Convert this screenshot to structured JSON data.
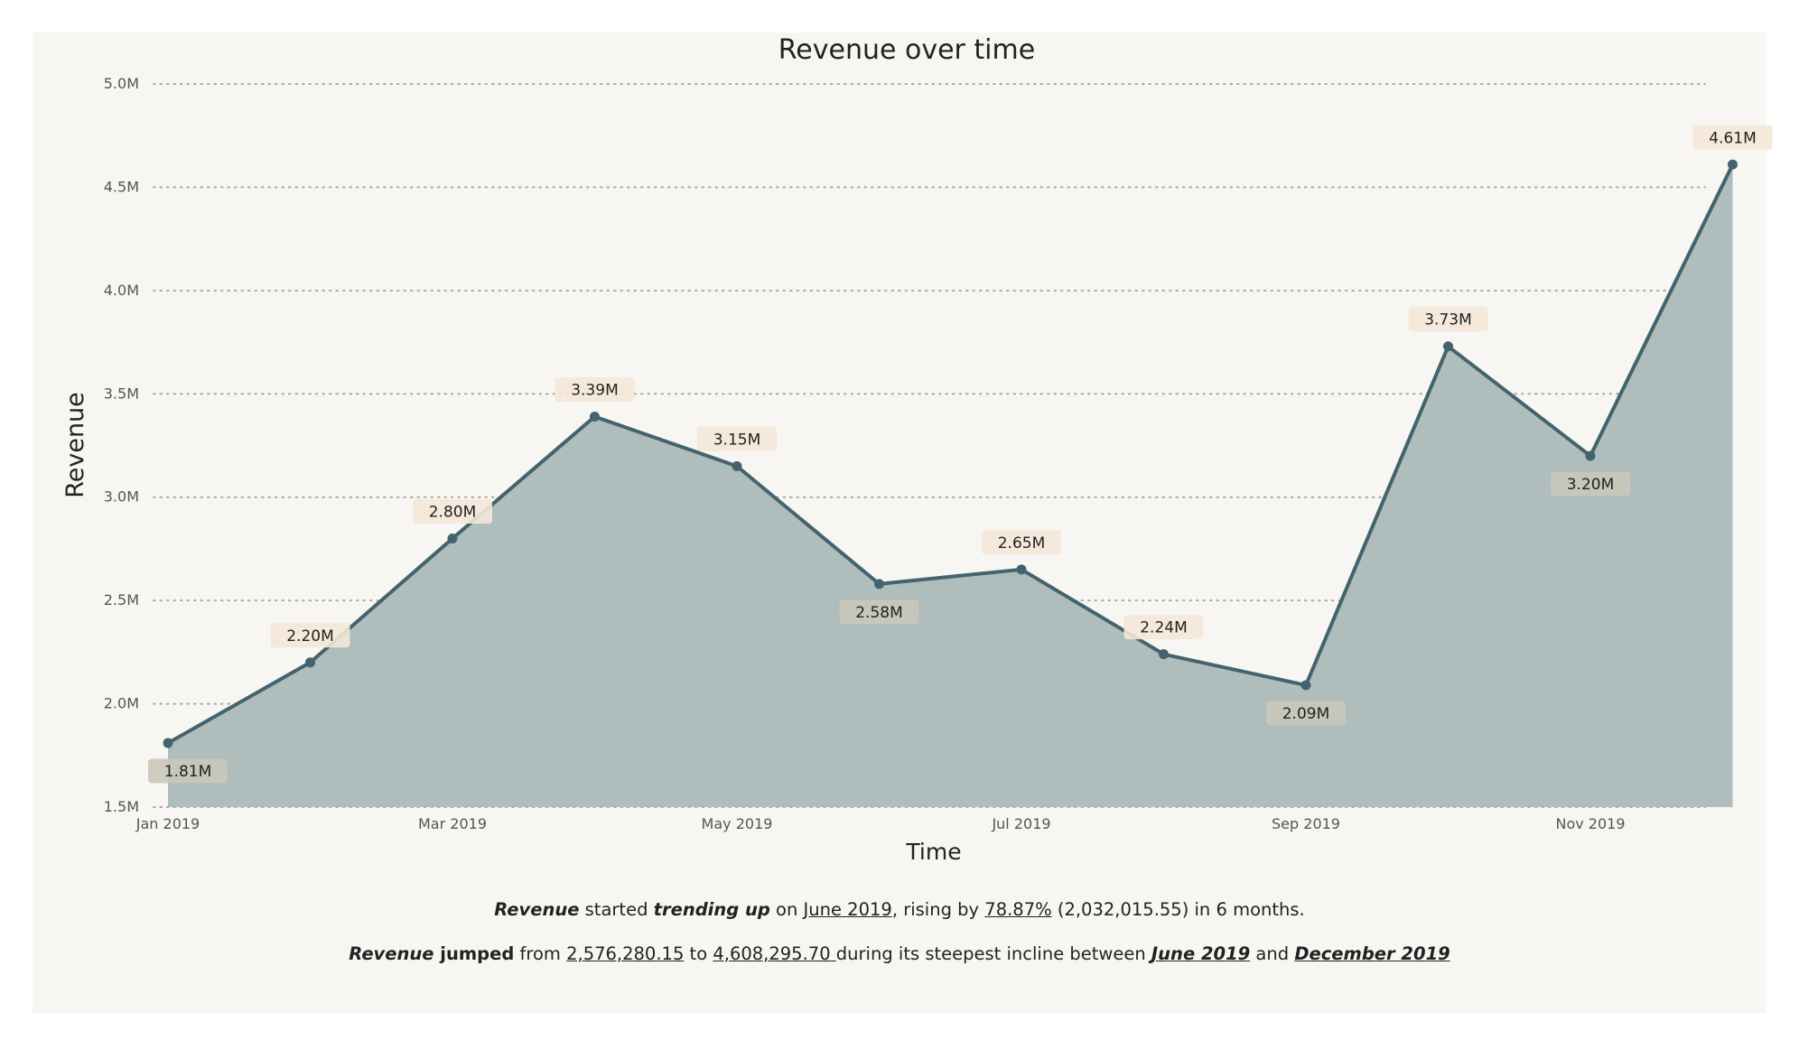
{
  "chart_data": {
    "type": "area",
    "title": "Revenue over time",
    "xlabel": "Time",
    "ylabel": "Revenue",
    "x": [
      "Jan 2019",
      "Feb 2019",
      "Mar 2019",
      "Apr 2019",
      "May 2019",
      "Jun 2019",
      "Jul 2019",
      "Aug 2019",
      "Sep 2019",
      "Oct 2019",
      "Nov 2019",
      "Dec 2019"
    ],
    "values": [
      1.81,
      2.2,
      2.8,
      3.39,
      3.15,
      2.58,
      2.65,
      2.24,
      2.09,
      3.73,
      3.2,
      4.61
    ],
    "data_labels": [
      "1.81M",
      "2.20M",
      "2.80M",
      "3.39M",
      "3.15M",
      "2.58M",
      "2.65M",
      "2.24M",
      "2.09M",
      "3.73M",
      "3.20M",
      "4.61M"
    ],
    "label_position": [
      "below",
      "above",
      "above",
      "above",
      "above",
      "below",
      "above",
      "above",
      "below",
      "above",
      "below",
      "above"
    ],
    "y_ticks": [
      1.5,
      2.0,
      2.5,
      3.0,
      3.5,
      4.0,
      4.5,
      5.0
    ],
    "y_tick_labels": [
      "1.5M",
      "2.0M",
      "2.5M",
      "3.0M",
      "3.5M",
      "4.0M",
      "4.5M",
      "5.0M"
    ],
    "x_tick_labels": [
      "Jan 2019",
      "Mar 2019",
      "May 2019",
      "Jul 2019",
      "Sep 2019",
      "Nov 2019"
    ],
    "ylim": [
      1.5,
      5.0
    ],
    "grid": "horizontal-dotted",
    "colors": {
      "line": "#43636e",
      "area": "#afbdbc",
      "label_above": "#f3e8d8",
      "label_below": "#c9c7b9"
    }
  },
  "insights": {
    "line1": {
      "metric": "Revenue",
      "t1": " started ",
      "trend": "trending up",
      "t2": " on ",
      "date": "June 2019",
      "t3": ", rising by ",
      "pct": "78.87%",
      "t4": " (2,032,015.55) in 6 months."
    },
    "line2": {
      "metric": "Revenue",
      "verb": " jumped",
      "t1": " from ",
      "from_val": "2,576,280.15",
      "t2": " to ",
      "to_val": "4,608,295.70 ",
      "t3": "during its steepest incline between ",
      "start": "June 2019",
      "t4": " and ",
      "end": "December 2019"
    }
  }
}
